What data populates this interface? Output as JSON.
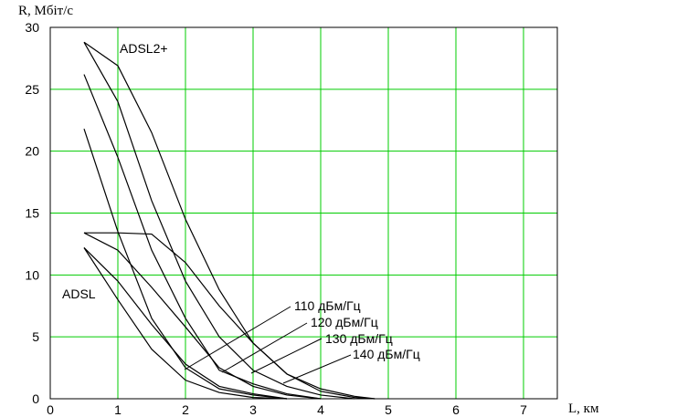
{
  "chart_data": {
    "type": "line",
    "y_label": "R, Мбіт/с",
    "x_label": "L, км",
    "xlim": [
      0,
      7.5
    ],
    "xticks": [
      0,
      1,
      2,
      3,
      4,
      5,
      6,
      7
    ],
    "ylim": [
      0,
      30
    ],
    "yticks": [
      0,
      5,
      10,
      15,
      20,
      25,
      30
    ],
    "grid": true,
    "grid_color": "#00cc00",
    "annotations": [
      "ADSL2+",
      "ADSL",
      "110 дБм/Гц",
      "120 дБм/Гц",
      "130 дБм/Гц",
      "140 дБм/Гц"
    ],
    "series": [
      {
        "color": "#000000",
        "x": [
          0.5,
          1,
          1.5,
          2,
          2.5,
          3,
          3.5,
          4,
          4.5,
          4.8
        ],
        "values": [
          28.8,
          26.9,
          21.5,
          14.5,
          8.8,
          4.5,
          2.0,
          0.8,
          0.2,
          0
        ]
      },
      {
        "color": "#000000",
        "x": [
          0.5,
          1,
          1.5,
          2,
          2.5,
          3,
          3.5,
          4,
          4.5
        ],
        "values": [
          28.8,
          24,
          16,
          9.5,
          5,
          2.3,
          1,
          0.3,
          0
        ]
      },
      {
        "color": "#000000",
        "x": [
          0.5,
          1,
          1.5,
          2,
          2.5,
          3,
          3.5,
          4
        ],
        "values": [
          26.2,
          19.5,
          12,
          6.5,
          2.3,
          1.2,
          0.4,
          0
        ]
      },
      {
        "color": "#000000",
        "x": [
          0.5,
          1,
          1.5,
          2,
          2.5,
          3,
          3.5
        ],
        "values": [
          21.8,
          13.5,
          6.5,
          2.5,
          0.8,
          0.3,
          0
        ]
      },
      {
        "color": "#000000",
        "x": [
          0.5,
          1,
          1.5,
          2,
          2.5,
          3,
          3.5,
          4,
          4.5,
          4.8
        ],
        "values": [
          13.4,
          13.4,
          13.3,
          11,
          7.5,
          4.5,
          2,
          0.6,
          0.1,
          0
        ]
      },
      {
        "color": "#000000",
        "x": [
          0.5,
          1,
          1.5,
          2,
          2.5,
          3,
          3.5,
          4
        ],
        "values": [
          13.4,
          12,
          9,
          5.8,
          2.5,
          1,
          0.3,
          0
        ]
      },
      {
        "color": "#000000",
        "x": [
          0.5,
          1,
          1.5,
          2,
          2.5,
          3,
          3.5
        ],
        "values": [
          12.2,
          9.5,
          6,
          2.8,
          1,
          0.4,
          0
        ]
      },
      {
        "color": "#000000",
        "x": [
          0.5,
          1,
          1.5,
          2,
          2.5,
          3,
          3.5
        ],
        "values": [
          12.2,
          8,
          4,
          1.5,
          0.5,
          0.1,
          0
        ]
      }
    ]
  }
}
